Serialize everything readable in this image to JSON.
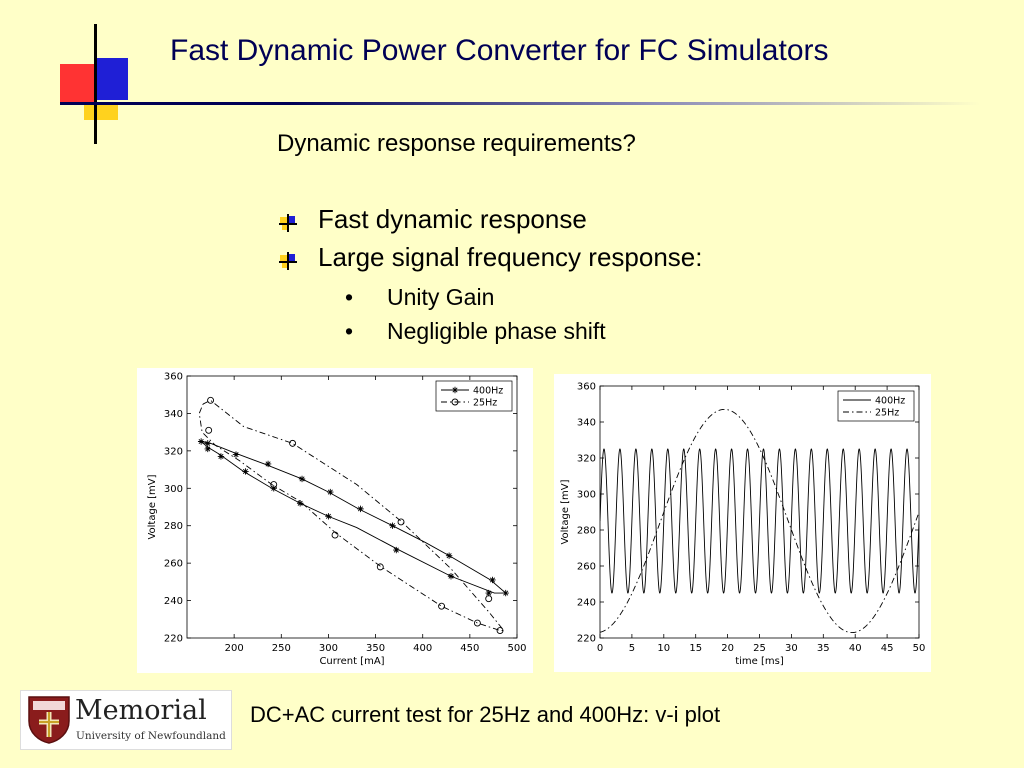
{
  "slide": {
    "title": "Fast Dynamic Power Converter for FC Simulators",
    "subtitle": "Dynamic response requirements?",
    "bullets": [
      "Fast dynamic response",
      "Large signal frequency response:"
    ],
    "subbullets": [
      "Unity Gain",
      "Negligible phase shift"
    ],
    "subbullet_marker": "•",
    "caption": "DC+AC current test for 25Hz and 400Hz: v-i plot",
    "colors": {
      "background": "#ffffc8",
      "title": "#000055",
      "accent_red": "#ff3333",
      "accent_blue": "#1f1fd6",
      "accent_yellow": "#ffd21e"
    }
  },
  "logo": {
    "name": "Memorial",
    "subtitle": "University of Newfoundland",
    "icon": "shield-crest-icon"
  },
  "chart_data": [
    {
      "type": "line",
      "xlabel": "Current [mA]",
      "ylabel": "Voltage [mV]",
      "xlim": [
        150,
        500
      ],
      "ylim": [
        220,
        360
      ],
      "xticks": [
        200,
        250,
        300,
        350,
        400,
        450,
        500
      ],
      "yticks": [
        220,
        240,
        260,
        280,
        300,
        320,
        340,
        360
      ],
      "grid": false,
      "legend": "top-right",
      "series": [
        {
          "name": "400Hz",
          "style": "solid",
          "marker": "star",
          "x": [
            165,
            175,
            200,
            232,
            272,
            300,
            332,
            368,
            403,
            428,
            472,
            488,
            476,
            430,
            375,
            330,
            300,
            270,
            240,
            210,
            185,
            172,
            165
          ],
          "y": [
            325,
            324,
            319,
            313,
            305,
            298,
            289,
            280,
            271,
            264,
            251,
            244,
            244,
            253,
            267,
            279,
            285,
            292,
            300,
            309,
            318,
            322,
            325
          ],
          "marker_x": [
            172,
            202,
            236,
            272,
            302,
            334,
            368,
            428,
            474,
            488,
            470,
            430,
            372,
            300,
            270,
            242,
            212,
            186,
            172,
            165
          ],
          "marker_y": [
            324,
            318,
            313,
            305,
            298,
            289,
            280,
            264,
            251,
            244,
            244,
            253,
            267,
            285,
            292,
            300,
            309,
            317,
            321,
            325
          ]
        },
        {
          "name": "25Hz",
          "style": "dashdot",
          "marker": "circle",
          "x": [
            167,
            175,
            210,
            262,
            330,
            378,
            430,
            470,
            486,
            482,
            458,
            420,
            356,
            308,
            270,
            240,
            205,
            180,
            166,
            163,
            167
          ],
          "y": [
            345,
            347,
            333,
            324,
            302,
            282,
            257,
            234,
            224,
            224,
            228,
            237,
            258,
            276,
            293,
            302,
            315,
            323,
            330,
            340,
            345
          ],
          "marker_x": [
            175,
            173,
            262,
            377,
            470,
            482,
            458,
            420,
            355,
            307,
            242
          ],
          "marker_y": [
            347,
            331,
            324,
            282,
            241,
            224,
            228,
            237,
            258,
            275,
            302
          ]
        }
      ]
    },
    {
      "type": "line",
      "xlabel": "time [ms]",
      "ylabel": "Voltage [mV]",
      "xlim": [
        0,
        50
      ],
      "ylim": [
        220,
        360
      ],
      "xticks": [
        0,
        5,
        10,
        15,
        20,
        25,
        30,
        35,
        40,
        45,
        50
      ],
      "yticks": [
        220,
        240,
        260,
        280,
        300,
        320,
        340,
        360
      ],
      "grid": false,
      "legend": "top-right",
      "series": [
        {
          "name": "400Hz",
          "style": "solid",
          "function": "sine",
          "offset_mV": 285,
          "amplitude_mV": 40,
          "frequency_Hz": 400,
          "phase_ms": 0
        },
        {
          "name": "25Hz",
          "style": "dashdot",
          "function": "sine",
          "offset_mV": 285,
          "amplitude_mV": 62,
          "frequency_Hz": 25,
          "phase_ms": 9.5
        }
      ]
    }
  ]
}
